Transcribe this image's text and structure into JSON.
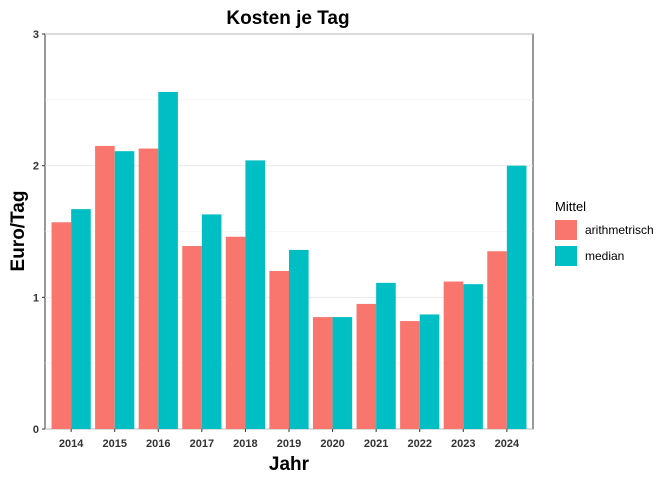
{
  "chart_data": {
    "type": "bar",
    "title": "Kosten je Tag",
    "xlabel": "Jahr",
    "ylabel": "Euro/Tag",
    "categories": [
      "2014",
      "2015",
      "2016",
      "2017",
      "2018",
      "2019",
      "2020",
      "2021",
      "2022",
      "2023",
      "2024"
    ],
    "series": [
      {
        "name": "arithmetrisch",
        "color": "#F8766D",
        "values": [
          1.57,
          2.15,
          2.13,
          1.39,
          1.46,
          1.2,
          0.85,
          0.95,
          0.82,
          1.12,
          1.35
        ]
      },
      {
        "name": "median",
        "color": "#00BFC4",
        "values": [
          1.67,
          2.11,
          2.56,
          1.63,
          2.04,
          1.36,
          0.85,
          1.11,
          0.87,
          1.1,
          2.0
        ]
      }
    ],
    "ylim": [
      0,
      3
    ],
    "yticks": [
      "0",
      "1",
      "2",
      "3"
    ],
    "legend": {
      "title": "Mittel",
      "position": "right"
    },
    "grid": true
  }
}
